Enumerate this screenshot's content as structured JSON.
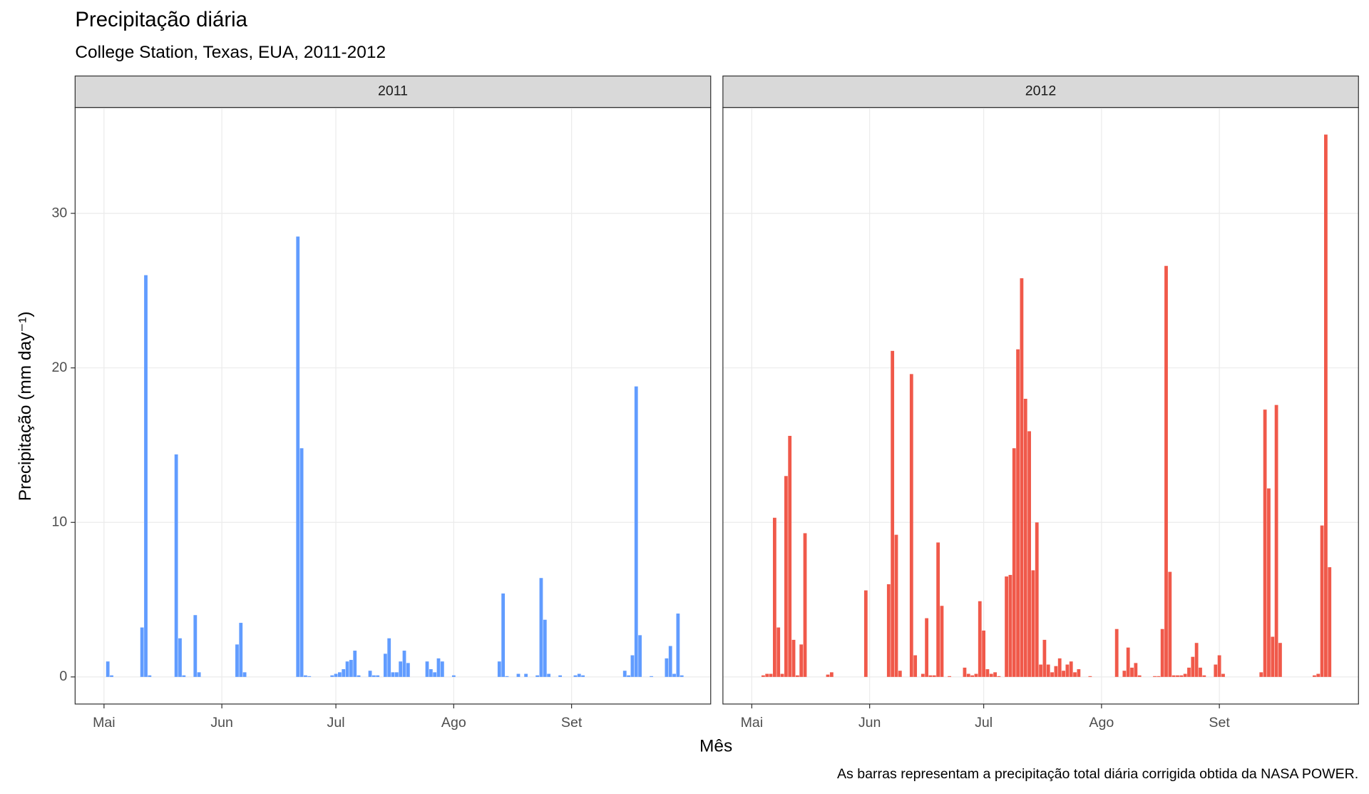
{
  "chart_data": {
    "type": "bar",
    "title": "Precipitação diária",
    "subtitle": "College Station, Texas, EUA, 2011-2012",
    "xlabel": "Mês",
    "ylabel": "Precipitação (mm day⁻¹)",
    "caption": "As barras representam a precipitação total diária corrigida obtida da NASA POWER.",
    "categories": [
      "Mai",
      null,
      null,
      null,
      null,
      null,
      null,
      null,
      null,
      null,
      null,
      null,
      null,
      null,
      null,
      null,
      null,
      null,
      null,
      null,
      null,
      null,
      null,
      null,
      null,
      null,
      null,
      null,
      null,
      null,
      null,
      "Jun",
      null,
      null,
      null,
      null,
      null,
      null,
      null,
      null,
      null,
      null,
      null,
      null,
      null,
      null,
      null,
      null,
      null,
      null,
      null,
      null,
      null,
      null,
      null,
      null,
      null,
      null,
      null,
      null,
      null,
      "Jul",
      null,
      null,
      null,
      null,
      null,
      null,
      null,
      null,
      null,
      null,
      null,
      null,
      null,
      null,
      null,
      null,
      null,
      null,
      null,
      null,
      null,
      null,
      null,
      null,
      null,
      null,
      null,
      null,
      null,
      null,
      "Ago",
      null,
      null,
      null,
      null,
      null,
      null,
      null,
      null,
      null,
      null,
      null,
      null,
      null,
      null,
      null,
      null,
      null,
      null,
      null,
      null,
      null,
      null,
      null,
      null,
      null,
      null,
      null,
      null,
      null,
      null,
      "Set",
      null,
      null,
      null,
      null,
      null,
      null,
      null,
      null,
      null,
      null,
      null,
      null,
      null,
      null,
      null,
      null,
      null,
      null,
      null,
      null,
      null,
      null,
      null,
      null,
      null,
      null,
      null,
      null,
      null
    ],
    "ylim": [
      -1.755,
      36.855
    ],
    "yticks": [
      0,
      10,
      20,
      30
    ],
    "grid": true,
    "series": [
      {
        "name": "2011",
        "color": "#619CFF",
        "values": [
          0,
          1.0,
          0.1,
          0,
          0,
          0,
          0,
          0,
          0,
          0,
          3.2,
          26.0,
          0.1,
          0,
          0,
          0,
          0,
          0,
          0,
          14.4,
          2.5,
          0.1,
          0,
          0,
          4.0,
          0.3,
          0,
          0,
          0,
          0,
          0,
          0,
          0,
          0,
          0,
          2.1,
          3.5,
          0.3,
          0,
          0,
          0,
          0,
          0,
          0,
          0,
          0,
          0,
          0,
          0,
          0,
          0,
          28.5,
          14.8,
          0.1,
          0.05,
          0,
          0,
          0,
          0,
          0,
          0.1,
          0.2,
          0.3,
          0.5,
          1.0,
          1.1,
          1.7,
          0.1,
          0,
          0,
          0.4,
          0.1,
          0.1,
          0,
          1.5,
          2.5,
          0.3,
          0.3,
          1.0,
          1.7,
          0.9,
          0,
          0,
          0,
          0,
          1.0,
          0.5,
          0.3,
          1.2,
          1.0,
          0,
          0,
          0.1,
          0,
          0,
          0,
          0,
          0,
          0,
          0,
          0,
          0,
          0,
          0,
          1.0,
          5.4,
          0.05,
          0,
          0,
          0.2,
          0,
          0.2,
          0,
          0,
          0.1,
          6.4,
          3.7,
          0.2,
          0,
          0,
          0.1,
          0,
          0,
          0,
          0.1,
          0.2,
          0.1,
          0,
          0,
          0,
          0,
          0,
          0,
          0,
          0,
          0,
          0,
          0.4,
          0.1,
          1.4,
          18.8,
          2.7,
          0,
          0,
          0.05,
          0,
          0,
          0,
          1.2,
          2.0,
          0.2,
          4.1,
          0.1
        ]
      },
      {
        "name": "2012",
        "color": "#F0594A",
        "values": [
          0,
          0,
          0,
          0.1,
          0.2,
          0.2,
          10.3,
          3.2,
          0.2,
          13.0,
          15.6,
          2.4,
          0.1,
          2.1,
          9.3,
          0,
          0,
          0,
          0,
          0,
          0.15,
          0.3,
          0,
          0,
          0,
          0,
          0,
          0,
          0,
          0,
          5.6,
          0,
          0,
          0,
          0,
          0,
          6.0,
          21.1,
          9.2,
          0.4,
          0,
          0,
          19.6,
          1.4,
          0,
          0.2,
          3.8,
          0.1,
          0.1,
          8.7,
          4.6,
          0,
          0.05,
          0,
          0,
          0,
          0.6,
          0.2,
          0.1,
          0.2,
          4.9,
          3.0,
          0.5,
          0.2,
          0.3,
          0.05,
          0,
          6.5,
          6.6,
          14.8,
          21.2,
          25.8,
          18.0,
          15.9,
          6.9,
          10.0,
          0.8,
          2.4,
          0.8,
          0.3,
          0.7,
          1.2,
          0.4,
          0.8,
          1.0,
          0.3,
          0.5,
          0,
          0,
          0.05,
          0,
          0,
          0,
          0,
          0,
          0,
          3.1,
          0,
          0.4,
          1.9,
          0.6,
          0.9,
          0.1,
          0,
          0,
          0,
          0.05,
          0.05,
          3.1,
          26.6,
          6.8,
          0.1,
          0.1,
          0.1,
          0.2,
          0.6,
          1.3,
          2.2,
          0.6,
          0.1,
          0,
          0,
          0.8,
          1.4,
          0.2,
          0,
          0,
          0,
          0,
          0,
          0,
          0,
          0,
          0,
          0.3,
          17.3,
          12.2,
          2.6,
          17.6,
          2.2,
          0,
          0,
          0,
          0,
          0,
          0,
          0,
          0,
          0.1,
          0.2,
          9.8,
          35.1,
          7.1
        ]
      }
    ]
  }
}
